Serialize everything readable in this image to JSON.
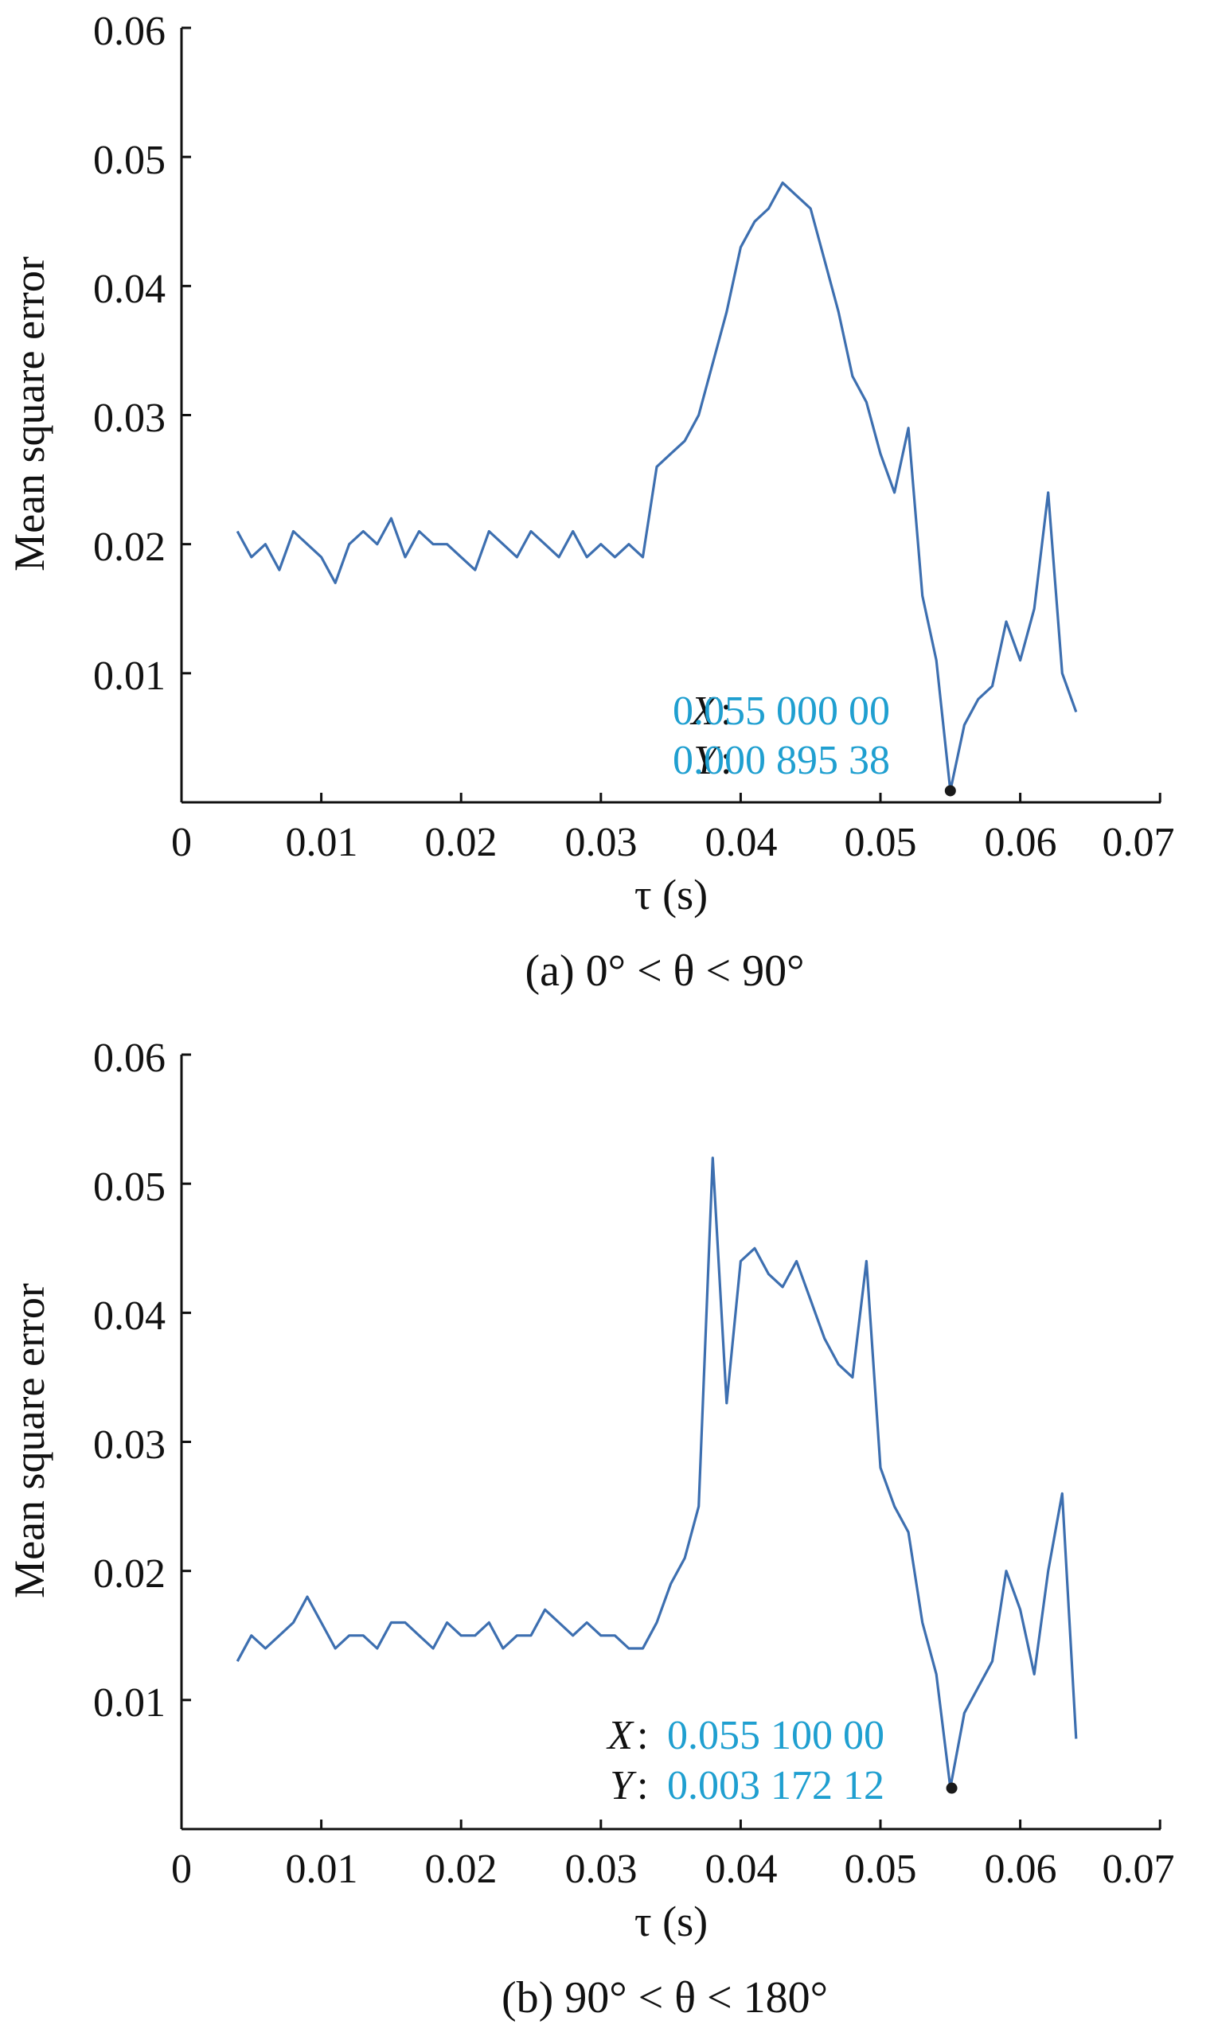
{
  "colors": {
    "series": "#3d6fb0",
    "readout": "#1f9fd0",
    "axis": "#111111"
  },
  "chart_data": [
    {
      "type": "line",
      "caption": "(a) 0° < θ < 90°",
      "xlabel": "τ (s)",
      "ylabel": "Mean square error",
      "xlim": [
        0,
        0.07
      ],
      "ylim": [
        0,
        0.06
      ],
      "xticks": [
        "0",
        "0.01",
        "0.02",
        "0.03",
        "0.04",
        "0.05",
        "0.06",
        "0.07"
      ],
      "yticks": [
        "0.01",
        "0.02",
        "0.03",
        "0.04",
        "0.05",
        "0.06"
      ],
      "grid": false,
      "series": [
        {
          "x": [
            0.004,
            0.005,
            0.006,
            0.007,
            0.008,
            0.009,
            0.01,
            0.011,
            0.012,
            0.013,
            0.014,
            0.015,
            0.016,
            0.017,
            0.018,
            0.019,
            0.02,
            0.021,
            0.022,
            0.023,
            0.024,
            0.025,
            0.026,
            0.027,
            0.028,
            0.029,
            0.03,
            0.031,
            0.032,
            0.033,
            0.034,
            0.035,
            0.036,
            0.037,
            0.038,
            0.039,
            0.04,
            0.041,
            0.042,
            0.043,
            0.044,
            0.045,
            0.046,
            0.047,
            0.048,
            0.049,
            0.05,
            0.051,
            0.052,
            0.053,
            0.054,
            0.055,
            0.056,
            0.057,
            0.058,
            0.059,
            0.06,
            0.061,
            0.062,
            0.063,
            0.064
          ],
          "y": [
            0.021,
            0.019,
            0.02,
            0.018,
            0.021,
            0.02,
            0.019,
            0.017,
            0.02,
            0.021,
            0.02,
            0.022,
            0.019,
            0.021,
            0.02,
            0.02,
            0.019,
            0.018,
            0.021,
            0.02,
            0.019,
            0.021,
            0.02,
            0.019,
            0.021,
            0.019,
            0.02,
            0.019,
            0.02,
            0.019,
            0.026,
            0.027,
            0.028,
            0.03,
            0.034,
            0.038,
            0.043,
            0.045,
            0.046,
            0.048,
            0.047,
            0.046,
            0.042,
            0.038,
            0.033,
            0.031,
            0.027,
            0.024,
            0.029,
            0.016,
            0.011,
            0.0009,
            0.006,
            0.008,
            0.009,
            0.014,
            0.011,
            0.015,
            0.024,
            0.01,
            0.007
          ]
        }
      ],
      "marker": {
        "x": 0.055,
        "y": 0.00089538
      },
      "readout": {
        "x_label": "X",
        "x_value": "0.055 000 00",
        "y_label": "Y",
        "y_value": "0.000 895 38"
      }
    },
    {
      "type": "line",
      "caption": "(b) 90° < θ < 180°",
      "xlabel": "τ (s)",
      "ylabel": "Mean square error",
      "xlim": [
        0,
        0.07
      ],
      "ylim": [
        0,
        0.06
      ],
      "xticks": [
        "0",
        "0.01",
        "0.02",
        "0.03",
        "0.04",
        "0.05",
        "0.06",
        "0.07"
      ],
      "yticks": [
        "0.01",
        "0.02",
        "0.03",
        "0.04",
        "0.05",
        "0.06"
      ],
      "grid": false,
      "series": [
        {
          "x": [
            0.004,
            0.005,
            0.006,
            0.007,
            0.008,
            0.009,
            0.01,
            0.011,
            0.012,
            0.013,
            0.014,
            0.015,
            0.016,
            0.017,
            0.018,
            0.019,
            0.02,
            0.021,
            0.022,
            0.023,
            0.024,
            0.025,
            0.026,
            0.027,
            0.028,
            0.029,
            0.03,
            0.031,
            0.032,
            0.033,
            0.034,
            0.035,
            0.036,
            0.037,
            0.038,
            0.039,
            0.04,
            0.041,
            0.042,
            0.043,
            0.044,
            0.045,
            0.046,
            0.047,
            0.048,
            0.049,
            0.05,
            0.051,
            0.052,
            0.053,
            0.054,
            0.055,
            0.056,
            0.057,
            0.058,
            0.059,
            0.06,
            0.061,
            0.062,
            0.063,
            0.064
          ],
          "y": [
            0.013,
            0.015,
            0.014,
            0.015,
            0.016,
            0.018,
            0.016,
            0.014,
            0.015,
            0.015,
            0.014,
            0.016,
            0.016,
            0.015,
            0.014,
            0.016,
            0.015,
            0.015,
            0.016,
            0.014,
            0.015,
            0.015,
            0.017,
            0.016,
            0.015,
            0.016,
            0.015,
            0.015,
            0.014,
            0.014,
            0.016,
            0.019,
            0.021,
            0.025,
            0.052,
            0.033,
            0.044,
            0.045,
            0.043,
            0.042,
            0.044,
            0.041,
            0.038,
            0.036,
            0.035,
            0.044,
            0.028,
            0.025,
            0.023,
            0.016,
            0.012,
            0.0032,
            0.009,
            0.011,
            0.013,
            0.02,
            0.017,
            0.012,
            0.02,
            0.026,
            0.007
          ]
        }
      ],
      "marker": {
        "x": 0.0551,
        "y": 0.00317212
      },
      "readout": {
        "x_label": "X",
        "x_value": "0.055 100 00",
        "y_label": "Y",
        "y_value": "0.003 172 12"
      }
    }
  ]
}
